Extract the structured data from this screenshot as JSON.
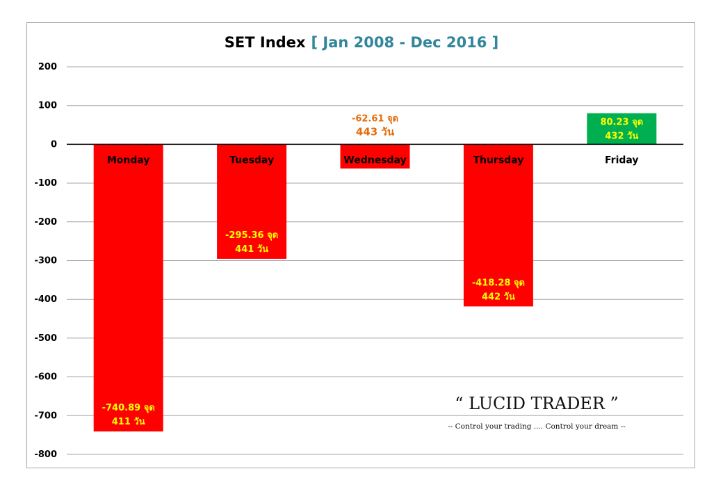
{
  "chart_data": {
    "type": "bar",
    "title": "SET Index",
    "subtitle": "[ Jan 2008 - Dec 2016 ]",
    "categories": [
      "Monday",
      "Tuesday",
      "Wednesday",
      "Thursday",
      "Friday"
    ],
    "values": [
      -740.89,
      -295.36,
      -62.61,
      -418.28,
      80.23
    ],
    "data_labels": [
      [
        "-740.89 จุด",
        "411 วัน"
      ],
      [
        "-295.36 จุด",
        "441 วัน"
      ],
      [
        "-62.61 จุด",
        "443 วัน"
      ],
      [
        "-418.28 จุด",
        "442 วัน"
      ],
      [
        "80.23 จุด",
        "432 วัน"
      ]
    ],
    "ylim": [
      -800,
      200
    ],
    "yticks": [
      200,
      100,
      0,
      -100,
      -200,
      -300,
      -400,
      -500,
      -600,
      -700,
      -800
    ],
    "grid": true,
    "legend": "none",
    "colors": {
      "negative": "#ff0000",
      "positive": "#00b050",
      "label_on_bar": "#ffff00",
      "label_outside": "#e46c0a",
      "title_accent": "#31869b",
      "grid": "#a6a6a6"
    }
  },
  "watermark": {
    "title": "“ LUCID TRADER ”",
    "tagline": "-- Control your trading .... Control your dream --"
  }
}
